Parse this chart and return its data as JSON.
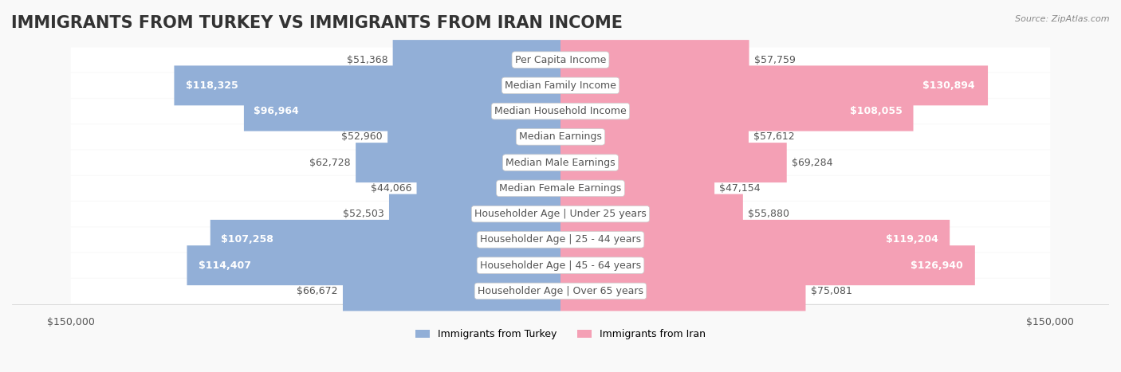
{
  "title": "IMMIGRANTS FROM TURKEY VS IMMIGRANTS FROM IRAN INCOME",
  "source": "Source: ZipAtlas.com",
  "categories": [
    "Per Capita Income",
    "Median Family Income",
    "Median Household Income",
    "Median Earnings",
    "Median Male Earnings",
    "Median Female Earnings",
    "Householder Age | Under 25 years",
    "Householder Age | 25 - 44 years",
    "Householder Age | 45 - 64 years",
    "Householder Age | Over 65 years"
  ],
  "turkey_values": [
    51368,
    118325,
    96964,
    52960,
    62728,
    44066,
    52503,
    107258,
    114407,
    66672
  ],
  "iran_values": [
    57759,
    130894,
    108055,
    57612,
    69284,
    47154,
    55880,
    119204,
    126940,
    75081
  ],
  "turkey_color": "#92afd7",
  "iran_color": "#f4a0b5",
  "turkey_label_color_threshold": 80000,
  "iran_label_color_threshold": 80000,
  "turkey_text_inside_color": "#ffffff",
  "turkey_text_outside_color": "#555555",
  "iran_text_inside_color": "#ffffff",
  "iran_text_outside_color": "#555555",
  "max_value": 150000,
  "background_color": "#f9f9f9",
  "row_background_color": "#ffffff",
  "row_alt_background_color": "#f0f0f0",
  "legend_turkey_color": "#92afd7",
  "legend_iran_color": "#f4a0b5",
  "legend_turkey_label": "Immigrants from Turkey",
  "legend_iran_label": "Immigrants from Iran",
  "category_box_color": "#ffffff",
  "category_text_color": "#555555",
  "title_fontsize": 15,
  "label_fontsize": 9,
  "category_fontsize": 9,
  "axis_label_fontsize": 9
}
